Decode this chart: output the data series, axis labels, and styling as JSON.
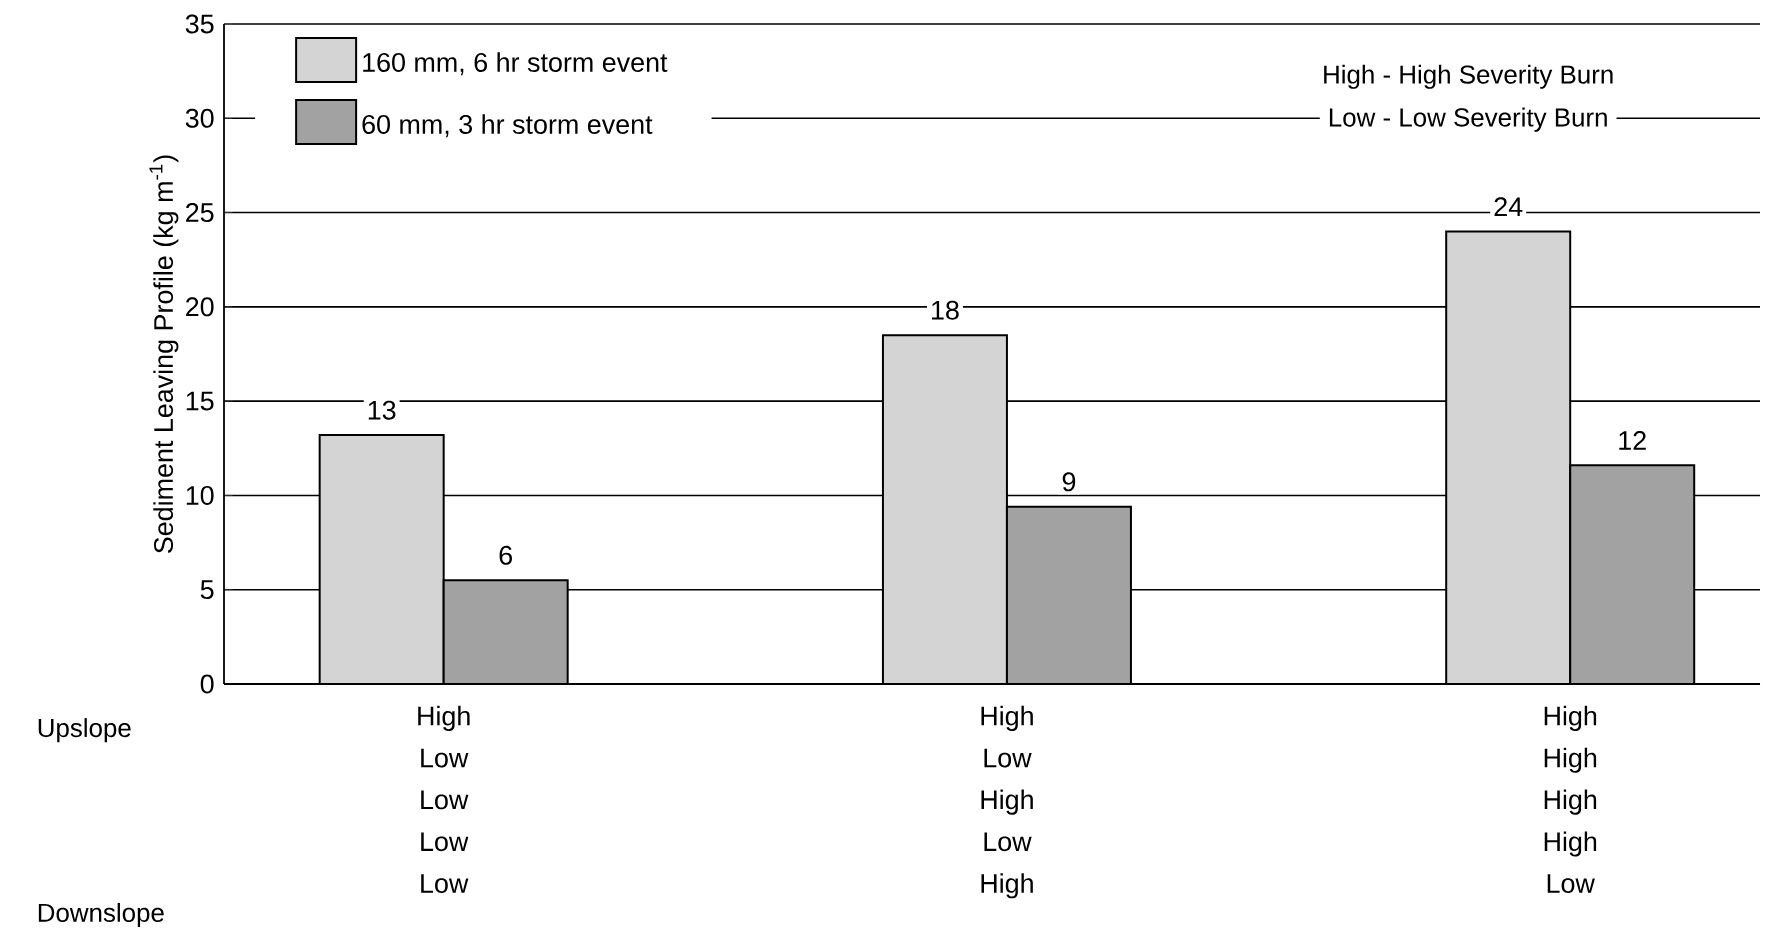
{
  "chart_data": {
    "type": "bar",
    "ylabel": "Sediment Leaving Profile (kg m$^{-1}$)",
    "categories": [
      "High Low Low Low Low",
      "High Low High Low High",
      "High High High High Low"
    ],
    "series": [
      {
        "name": "160 mm, 6 hr storm event",
        "color": "#d4d4d4",
        "values": [
          13.2,
          18.5,
          24.0
        ],
        "value_labels": [
          "13",
          "18",
          "24"
        ]
      },
      {
        "name": "60 mm, 3 hr storm event",
        "color": "#a2a2a2",
        "values": [
          5.5,
          9.4,
          11.6
        ],
        "value_labels": [
          "6",
          "9",
          "12"
        ]
      }
    ],
    "ylim": [
      0,
      35
    ],
    "yticks": [
      0,
      5,
      10,
      15,
      20,
      25,
      30,
      35
    ],
    "grid": "y",
    "legend": "top left",
    "annotations": [
      "Upslope",
      "Downslope",
      "High - High Severity Burn",
      "Low - Low Severity Burn"
    ]
  }
}
